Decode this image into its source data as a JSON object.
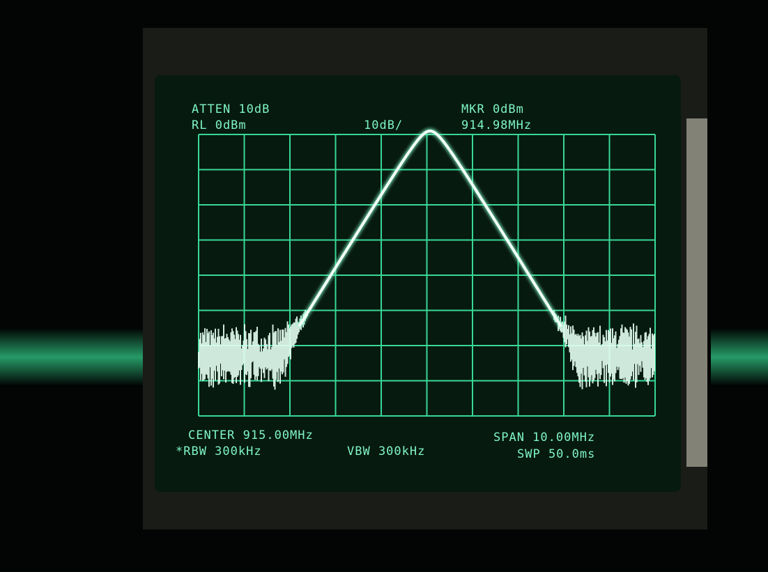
{
  "screen": {
    "top_left": [
      "ATTEN 10dB",
      "RL 0dBm"
    ],
    "scale": "10dB/",
    "top_right": [
      "MKR 0dBm",
      "914.98MHz"
    ],
    "bottom_left": [
      "CENTER 915.00MHz",
      "*RBW 300kHz"
    ],
    "bottom_middle": "VBW 300kHz",
    "bottom_right": [
      "SPAN 10.00MHz",
      "SWP 50.0ms"
    ]
  }
}
